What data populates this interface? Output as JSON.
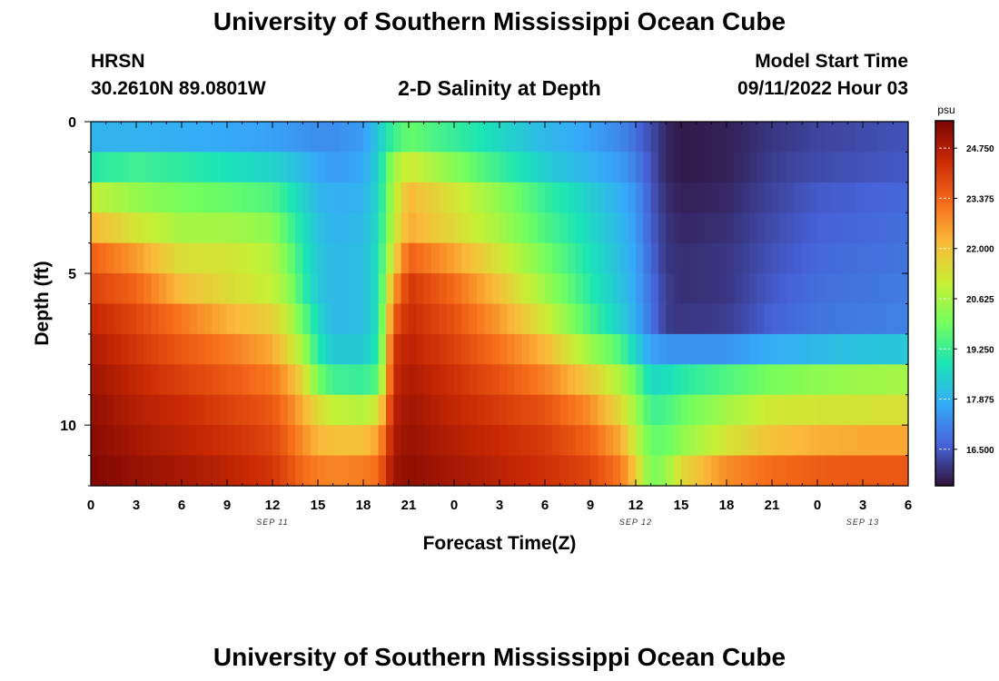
{
  "header": {
    "title": "University of Southern Mississippi Ocean Cube",
    "station": "HRSN",
    "coords": "30.2610N  89.0801W",
    "chart_title": "2-D Salinity at Depth",
    "model_start_label": "Model Start Time",
    "model_start_value": "09/11/2022 Hour 03"
  },
  "footer": {
    "title": "University of Southern Mississippi Ocean Cube"
  },
  "chart_data": {
    "type": "heatmap",
    "title": "2-D Salinity at Depth",
    "xlabel": "Forecast Time(Z)",
    "ylabel": "Depth (ft)",
    "x_ticks": [
      "0",
      "3",
      "6",
      "9",
      "12",
      "15",
      "18",
      "21",
      "0",
      "3",
      "6",
      "9",
      "12",
      "15",
      "18",
      "21",
      "0",
      "3",
      "6"
    ],
    "x_range_hours": [
      0,
      54
    ],
    "date_labels": [
      {
        "label": "SEP 11",
        "hour": 12
      },
      {
        "label": "SEP 12",
        "hour": 36
      },
      {
        "label": "SEP 13",
        "hour": 51
      }
    ],
    "y_ticks": [
      "0",
      "5",
      "10"
    ],
    "y_range_ft": [
      0,
      12
    ],
    "colorbar": {
      "unit": "psu",
      "min": 15.5,
      "max": 25.5,
      "ticks": [
        "24.750",
        "23.375",
        "22.000",
        "20.625",
        "19.250",
        "17.875",
        "16.500"
      ],
      "colormap": [
        "#30123b",
        "#4662d7",
        "#36aaf9",
        "#1ae4b6",
        "#72fe5e",
        "#c8ef34",
        "#faba39",
        "#f66b19",
        "#cb2a04",
        "#7a0403"
      ]
    },
    "depth_levels_ft": [
      0.5,
      1.5,
      2.5,
      3.5,
      4.5,
      5.5,
      6.5,
      7.5,
      8.5,
      9.5,
      10.5,
      11.5
    ],
    "time_keys_hours": [
      0,
      3,
      6,
      9,
      12,
      13,
      14,
      15,
      16,
      18,
      19,
      20,
      21,
      24,
      27,
      30,
      33,
      35,
      36,
      37,
      38,
      39,
      42,
      45,
      48,
      51,
      54
    ],
    "salinity_psu": [
      [
        17.9,
        17.9,
        17.8,
        17.7,
        17.6,
        17.5,
        17.4,
        17.3,
        17.3,
        17.5,
        18.3,
        19.3,
        19.8,
        19.2,
        18.6,
        18.0,
        17.6,
        17.2,
        16.8,
        16.3,
        15.8,
        15.6,
        15.7,
        16.0,
        16.2,
        16.3,
        16.4
      ],
      [
        19.0,
        19.3,
        19.1,
        18.8,
        18.5,
        18.3,
        18.0,
        17.7,
        17.5,
        17.7,
        18.5,
        20.5,
        21.2,
        20.2,
        19.2,
        18.4,
        17.9,
        17.5,
        17.1,
        16.4,
        15.8,
        15.6,
        15.7,
        16.1,
        16.3,
        16.4,
        16.5
      ],
      [
        21.0,
        20.4,
        20.0,
        19.8,
        19.5,
        19.0,
        18.5,
        18.0,
        17.8,
        17.9,
        18.6,
        20.8,
        22.2,
        21.3,
        20.3,
        19.2,
        18.4,
        17.8,
        17.4,
        16.5,
        15.9,
        15.7,
        15.8,
        16.2,
        16.5,
        16.6,
        16.7
      ],
      [
        22.2,
        21.3,
        20.6,
        20.6,
        20.3,
        19.5,
        18.8,
        18.2,
        17.9,
        18.0,
        18.7,
        21.0,
        22.4,
        21.5,
        20.6,
        19.5,
        18.6,
        18.0,
        17.5,
        16.6,
        16.0,
        15.8,
        15.9,
        16.3,
        16.6,
        16.7,
        16.8
      ],
      [
        23.5,
        22.6,
        21.4,
        21.3,
        20.8,
        20.0,
        19.0,
        18.3,
        18.0,
        18.1,
        18.8,
        21.5,
        23.5,
        22.5,
        21.3,
        20.0,
        18.8,
        18.1,
        17.6,
        16.7,
        16.0,
        15.9,
        16.0,
        16.4,
        16.7,
        16.8,
        16.9
      ],
      [
        24.0,
        23.4,
        22.1,
        21.5,
        21.0,
        20.4,
        19.2,
        18.3,
        18.0,
        18.1,
        18.8,
        22.5,
        24.2,
        23.3,
        22.0,
        20.5,
        19.0,
        18.2,
        17.7,
        16.8,
        16.1,
        15.9,
        16.0,
        16.5,
        16.8,
        16.9,
        17.0
      ],
      [
        24.5,
        23.9,
        23.1,
        22.3,
        21.7,
        21.0,
        19.8,
        18.6,
        18.0,
        18.1,
        18.8,
        23.5,
        24.4,
        23.7,
        22.6,
        21.2,
        19.4,
        18.4,
        17.8,
        16.9,
        16.1,
        16.0,
        16.1,
        16.6,
        16.9,
        17.0,
        17.1
      ],
      [
        24.8,
        24.2,
        23.6,
        23.1,
        22.4,
        21.6,
        20.6,
        19.0,
        18.3,
        18.3,
        19.0,
        24.2,
        24.6,
        24.0,
        23.2,
        22.2,
        20.5,
        19.5,
        18.5,
        17.6,
        17.4,
        17.4,
        17.4,
        17.8,
        18.0,
        18.2,
        18.3
      ],
      [
        25.0,
        24.5,
        24.0,
        23.6,
        23.1,
        22.5,
        21.6,
        20.0,
        19.3,
        19.2,
        19.6,
        24.4,
        24.8,
        24.3,
        23.7,
        23.0,
        21.8,
        20.7,
        19.8,
        18.6,
        18.7,
        19.0,
        19.5,
        20.0,
        20.3,
        20.5,
        20.6
      ],
      [
        25.2,
        24.7,
        24.4,
        24.0,
        23.6,
        23.1,
        22.3,
        21.5,
        21.0,
        20.8,
        21.3,
        24.6,
        25.0,
        24.5,
        24.1,
        23.7,
        22.8,
        21.5,
        20.5,
        19.3,
        19.4,
        19.8,
        20.6,
        21.2,
        21.3,
        21.3,
        21.4
      ],
      [
        25.3,
        24.9,
        24.6,
        24.3,
        23.9,
        23.4,
        22.8,
        22.2,
        22.0,
        22.0,
        22.5,
        24.8,
        25.1,
        24.7,
        24.4,
        24.1,
        23.4,
        22.4,
        21.0,
        19.8,
        19.8,
        20.3,
        21.3,
        22.0,
        22.3,
        22.4,
        22.4
      ],
      [
        25.4,
        25.1,
        24.9,
        24.6,
        24.2,
        23.8,
        23.3,
        23.0,
        22.9,
        23.0,
        23.3,
        25.0,
        25.2,
        24.9,
        24.6,
        24.3,
        23.9,
        23.1,
        21.8,
        20.0,
        20.4,
        21.5,
        22.8,
        23.3,
        23.5,
        23.6,
        23.6
      ]
    ]
  }
}
